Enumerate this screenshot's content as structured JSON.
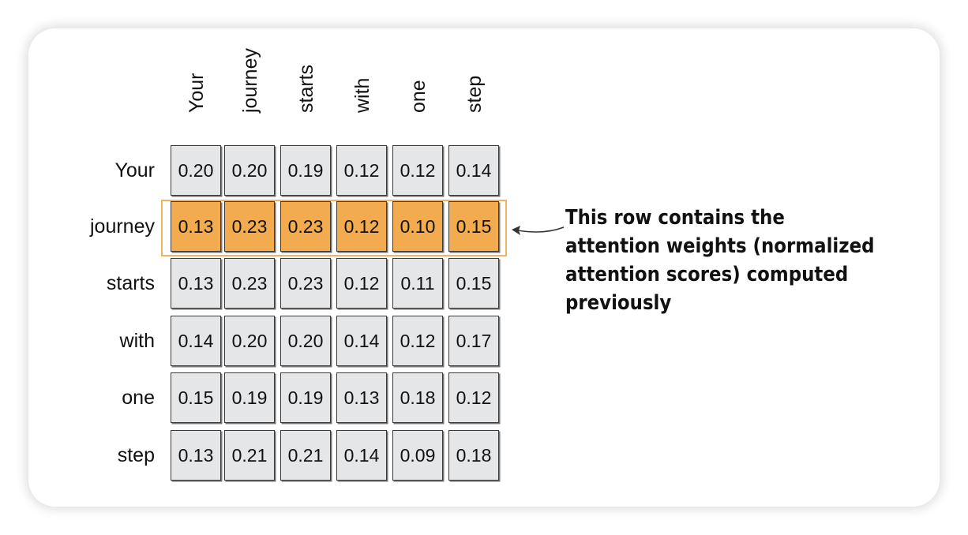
{
  "columns": [
    "Your",
    "journey",
    "starts",
    "with",
    "one",
    "step"
  ],
  "rows": [
    {
      "label": "Your",
      "values": [
        "0.20",
        "0.20",
        "0.19",
        "0.12",
        "0.12",
        "0.14"
      ]
    },
    {
      "label": "journey",
      "values": [
        "0.13",
        "0.23",
        "0.23",
        "0.12",
        "0.10",
        "0.15"
      ]
    },
    {
      "label": "starts",
      "values": [
        "0.13",
        "0.23",
        "0.23",
        "0.12",
        "0.11",
        "0.15"
      ]
    },
    {
      "label": "with",
      "values": [
        "0.14",
        "0.20",
        "0.20",
        "0.14",
        "0.12",
        "0.17"
      ]
    },
    {
      "label": "one",
      "values": [
        "0.15",
        "0.19",
        "0.19",
        "0.13",
        "0.18",
        "0.12"
      ]
    },
    {
      "label": "step",
      "values": [
        "0.13",
        "0.21",
        "0.21",
        "0.14",
        "0.09",
        "0.18"
      ]
    }
  ],
  "highlighted_row": "journey",
  "callout": {
    "text": "This row contains the attention weights (normalized attention scores) computed previously"
  },
  "colors": {
    "cell_fill": "#e5e6e7",
    "highlight_fill": "#f2ac4f",
    "highlight_border": "#f0b360"
  }
}
